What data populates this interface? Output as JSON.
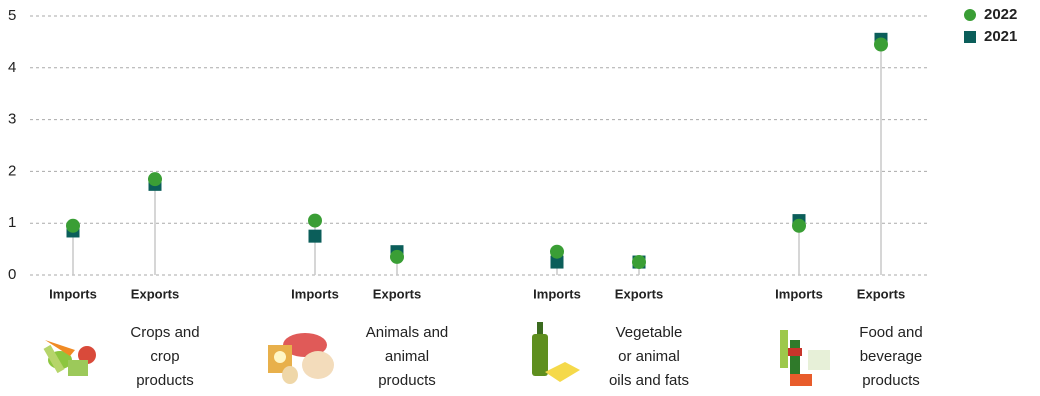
{
  "chart_data": {
    "type": "dot",
    "categories": [
      "Imports",
      "Exports",
      "Imports",
      "Exports",
      "Imports",
      "Exports",
      "Imports",
      "Exports"
    ],
    "groups": [
      {
        "label_lines": [
          "Crops and",
          "crop",
          "products"
        ]
      },
      {
        "label_lines": [
          "Animals and",
          "animal",
          "products"
        ]
      },
      {
        "label_lines": [
          "Vegetable",
          "or animal",
          "oils and fats"
        ]
      },
      {
        "label_lines": [
          "Food and",
          "beverage",
          "products"
        ]
      }
    ],
    "series": [
      {
        "name": "2022",
        "color": "#3a9e35",
        "marker": "circle",
        "values": [
          0.95,
          1.85,
          1.05,
          0.35,
          0.45,
          0.25,
          0.95,
          4.45
        ]
      },
      {
        "name": "2021",
        "color": "#0b5e5a",
        "marker": "square",
        "values": [
          0.85,
          1.75,
          0.75,
          0.45,
          0.25,
          0.25,
          1.05,
          4.55
        ]
      }
    ],
    "ylim": [
      0,
      5
    ],
    "yticks": [
      0,
      1,
      2,
      3,
      4,
      5
    ],
    "grid": true
  }
}
